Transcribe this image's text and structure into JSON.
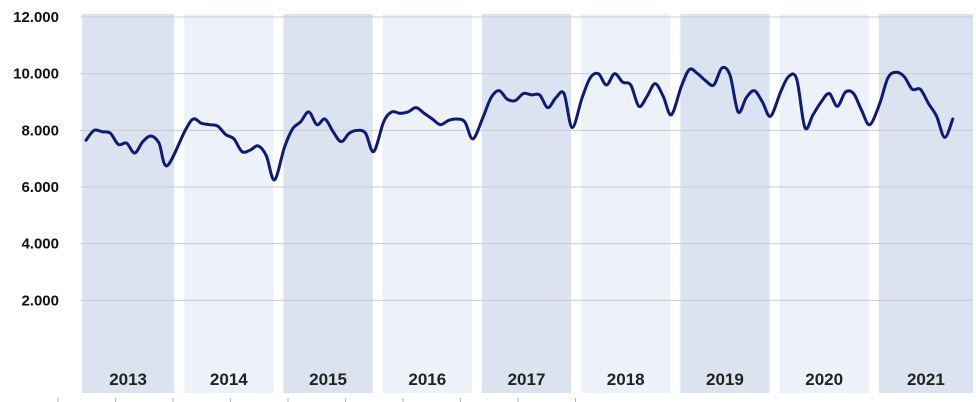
{
  "chart_data": {
    "type": "line",
    "title": "",
    "xlabel": "",
    "ylabel": "",
    "ylim": [
      0,
      12000
    ],
    "ytick_labels": [
      "2.000",
      "4.000",
      "6.000",
      "8.000",
      "10.000",
      "12.000"
    ],
    "categories": [
      "2013",
      "2014",
      "2015",
      "2016",
      "2017",
      "2018",
      "2019",
      "2020",
      "2021"
    ],
    "grid": true,
    "band_colors": [
      "#dbe3f0",
      "#edf1f9"
    ],
    "line_color": "#0d1a7a",
    "series": [
      {
        "values": [
          [
            7650,
            8000,
            7950,
            7900,
            7500,
            7550,
            7200,
            7600,
            7800,
            7550,
            6750
          ],
          [
            8000,
            8400,
            8250,
            8200,
            8150,
            7850,
            7700,
            7250,
            7300,
            7450,
            7100,
            6250
          ],
          [
            7400,
            8050,
            8300,
            8650,
            8200,
            8400,
            7950,
            7600,
            7900,
            8000,
            7900,
            7250
          ],
          [
            8300,
            8650,
            8600,
            8650,
            8800,
            8600,
            8400,
            8200,
            8350,
            8400,
            8300,
            7700
          ],
          [
            8450,
            9150,
            9400,
            9100,
            9050,
            9300,
            9250,
            9250,
            8800,
            9150,
            9300,
            8100
          ],
          [
            9150,
            9850,
            10000,
            9600,
            10000,
            9700,
            9600,
            8850,
            9200,
            9650,
            9200,
            8550
          ],
          [
            9550,
            10150,
            10000,
            9750,
            9600,
            10200,
            9950,
            8650,
            9150,
            9400,
            9000,
            8500
          ],
          [
            9350,
            9900,
            9800,
            8100,
            8550,
            9000,
            9300,
            8850,
            9350,
            9300,
            8700,
            8200
          ],
          [
            8950,
            9850,
            10050,
            9900,
            9450,
            9450,
            8950,
            8500,
            7750,
            8400
          ]
        ]
      }
    ]
  }
}
